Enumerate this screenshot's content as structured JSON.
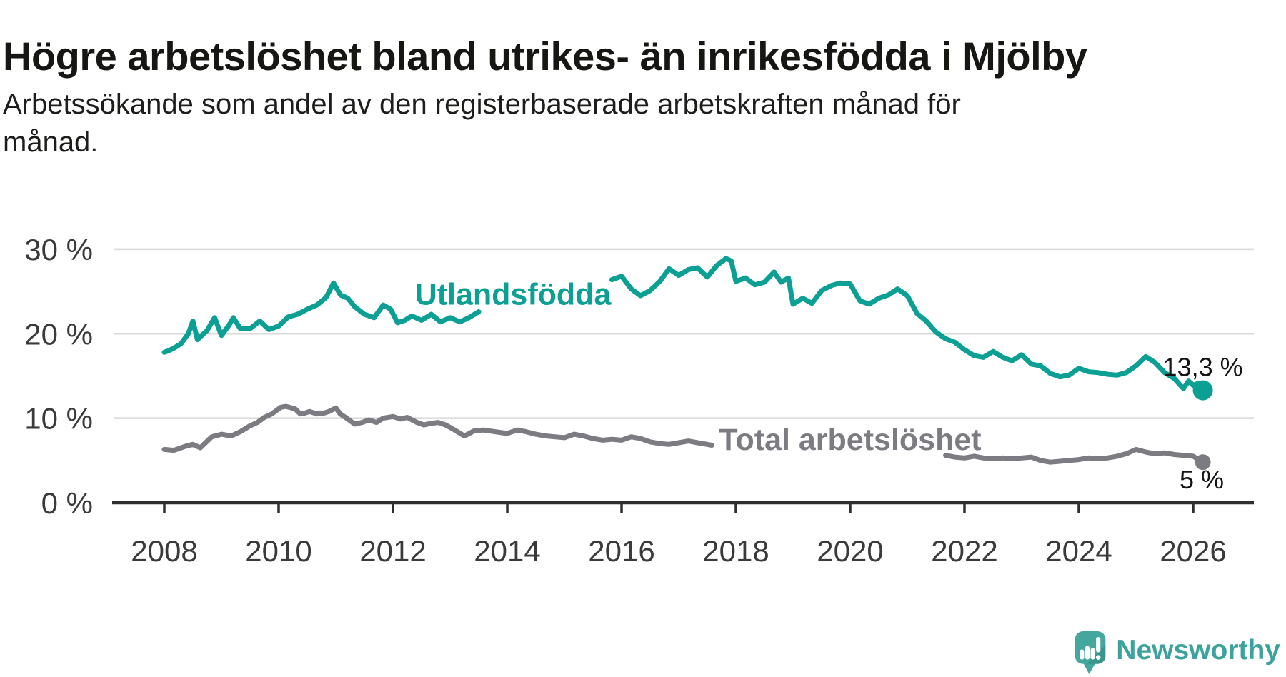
{
  "title": "Högre arbetslöshet bland utrikes- än inrikesfödda i Mjölby",
  "subtitle_lines": [
    "Arbetssökande som andel av den registerbaserade arbetskraften månad för",
    "månad."
  ],
  "colors": {
    "background": "#ffffff",
    "title": "#161613",
    "subtitle": "#1d1d1b",
    "teal": "#0ba093",
    "gray": "#7b7b81",
    "grid": "#d9d9d9",
    "axis": "#2e2e2e",
    "tick_text": "#3a3a3a",
    "annotation": "#141414",
    "logo_bubble": "#45a69e",
    "logo_bubble_shade": "#37908a",
    "logo_text": "#3ba39b"
  },
  "logo": {
    "text": "Newsworthy",
    "icon": "newsworthy-speech-bubble-chart-icon"
  },
  "chart_data": {
    "type": "line",
    "title": "Högre arbetslöshet bland utrikes- än inrikesfödda i Mjölby",
    "subtitle": "Arbetssökande som andel av den registerbaserade arbetskraften månad för månad.",
    "unit": "%",
    "grid": "horizontal",
    "legend_position": "inline-labels",
    "x_axis": {
      "range": [
        2007.1,
        2027.05
      ],
      "ticks": [
        2008,
        2010,
        2012,
        2014,
        2016,
        2018,
        2020,
        2022,
        2024,
        2026
      ]
    },
    "y_axis": {
      "range": [
        0,
        33.5
      ],
      "ticks": [
        {
          "value": 0,
          "label": "0 %"
        },
        {
          "value": 10,
          "label": "10 %"
        },
        {
          "value": 20,
          "label": "20 %"
        },
        {
          "value": 30,
          "label": "30 %"
        }
      ]
    },
    "series": [
      {
        "name": "Utlandsfödda",
        "color": "#0ba093",
        "label": {
          "text": "Utlandsfödda",
          "year": 2014.1,
          "value": 24.7
        },
        "end_dot": {
          "year": 2026.17,
          "value": 13.3,
          "radius": 14
        },
        "end_annotation": {
          "text": "13,3 %",
          "year": 2026.17,
          "value": 16.0
        },
        "segments": [
          [
            [
              2008.0,
              17.8
            ],
            [
              2008.08,
              18.0
            ],
            [
              2008.17,
              18.3
            ],
            [
              2008.29,
              18.8
            ],
            [
              2008.42,
              20.0
            ],
            [
              2008.5,
              21.5
            ],
            [
              2008.58,
              19.3
            ],
            [
              2008.75,
              20.4
            ],
            [
              2008.88,
              21.9
            ],
            [
              2009.0,
              19.8
            ],
            [
              2009.13,
              21.0
            ],
            [
              2009.21,
              21.9
            ],
            [
              2009.33,
              20.6
            ],
            [
              2009.5,
              20.6
            ],
            [
              2009.67,
              21.5
            ],
            [
              2009.83,
              20.5
            ],
            [
              2010.0,
              20.9
            ],
            [
              2010.17,
              22.0
            ],
            [
              2010.33,
              22.3
            ],
            [
              2010.5,
              22.9
            ],
            [
              2010.67,
              23.4
            ],
            [
              2010.83,
              24.3
            ],
            [
              2010.96,
              26.0
            ],
            [
              2011.08,
              24.6
            ],
            [
              2011.21,
              24.2
            ],
            [
              2011.33,
              23.2
            ],
            [
              2011.5,
              22.3
            ],
            [
              2011.67,
              21.9
            ],
            [
              2011.83,
              23.4
            ],
            [
              2011.96,
              22.9
            ],
            [
              2012.08,
              21.3
            ],
            [
              2012.21,
              21.6
            ],
            [
              2012.33,
              22.1
            ],
            [
              2012.5,
              21.6
            ],
            [
              2012.67,
              22.3
            ],
            [
              2012.83,
              21.4
            ],
            [
              2013.0,
              21.9
            ],
            [
              2013.17,
              21.4
            ],
            [
              2013.33,
              21.9
            ],
            [
              2013.5,
              22.6
            ]
          ],
          [
            [
              2015.83,
              26.4
            ],
            [
              2016.0,
              26.8
            ],
            [
              2016.17,
              25.3
            ],
            [
              2016.33,
              24.5
            ],
            [
              2016.5,
              25.1
            ],
            [
              2016.67,
              26.2
            ],
            [
              2016.83,
              27.7
            ],
            [
              2017.0,
              26.9
            ],
            [
              2017.17,
              27.6
            ],
            [
              2017.33,
              27.8
            ],
            [
              2017.5,
              26.7
            ],
            [
              2017.67,
              28.1
            ],
            [
              2017.83,
              28.9
            ],
            [
              2017.92,
              28.6
            ],
            [
              2018.0,
              26.2
            ],
            [
              2018.17,
              26.6
            ],
            [
              2018.33,
              25.8
            ],
            [
              2018.5,
              26.1
            ],
            [
              2018.67,
              27.3
            ],
            [
              2018.79,
              26.1
            ],
            [
              2018.92,
              26.6
            ],
            [
              2019.0,
              23.5
            ],
            [
              2019.17,
              24.2
            ],
            [
              2019.33,
              23.6
            ],
            [
              2019.5,
              25.1
            ],
            [
              2019.67,
              25.7
            ],
            [
              2019.83,
              26.0
            ],
            [
              2020.0,
              25.9
            ],
            [
              2020.17,
              23.9
            ],
            [
              2020.33,
              23.5
            ],
            [
              2020.5,
              24.2
            ],
            [
              2020.67,
              24.6
            ],
            [
              2020.83,
              25.3
            ],
            [
              2021.0,
              24.5
            ],
            [
              2021.17,
              22.4
            ],
            [
              2021.33,
              21.5
            ],
            [
              2021.5,
              20.2
            ],
            [
              2021.67,
              19.4
            ],
            [
              2021.83,
              19.0
            ],
            [
              2022.0,
              18.1
            ],
            [
              2022.17,
              17.4
            ],
            [
              2022.33,
              17.2
            ],
            [
              2022.5,
              17.9
            ],
            [
              2022.67,
              17.2
            ],
            [
              2022.83,
              16.8
            ],
            [
              2023.0,
              17.5
            ],
            [
              2023.17,
              16.4
            ],
            [
              2023.33,
              16.2
            ],
            [
              2023.5,
              15.3
            ],
            [
              2023.67,
              14.9
            ],
            [
              2023.83,
              15.1
            ],
            [
              2024.0,
              15.9
            ],
            [
              2024.17,
              15.5
            ],
            [
              2024.33,
              15.4
            ],
            [
              2024.5,
              15.2
            ],
            [
              2024.67,
              15.1
            ],
            [
              2024.83,
              15.4
            ],
            [
              2025.0,
              16.2
            ],
            [
              2025.17,
              17.3
            ],
            [
              2025.33,
              16.6
            ],
            [
              2025.5,
              15.4
            ],
            [
              2025.67,
              14.7
            ],
            [
              2025.83,
              13.5
            ],
            [
              2025.92,
              14.4
            ],
            [
              2026.0,
              13.9
            ],
            [
              2026.08,
              14.1
            ],
            [
              2026.17,
              13.3
            ]
          ]
        ]
      },
      {
        "name": "Total arbetslöshet",
        "color": "#7b7b81",
        "label": {
          "text": "Total arbetslöshet",
          "year": 2020.0,
          "value": 7.5
        },
        "end_dot": {
          "year": 2026.17,
          "value": 4.8,
          "radius": 11
        },
        "end_annotation": {
          "text": "5 %",
          "year": 2026.15,
          "value": 2.7
        },
        "segments": [
          [
            [
              2008.0,
              6.3
            ],
            [
              2008.17,
              6.2
            ],
            [
              2008.38,
              6.7
            ],
            [
              2008.5,
              6.9
            ],
            [
              2008.63,
              6.5
            ],
            [
              2008.83,
              7.8
            ],
            [
              2009.0,
              8.1
            ],
            [
              2009.17,
              7.9
            ],
            [
              2009.33,
              8.4
            ],
            [
              2009.5,
              9.1
            ],
            [
              2009.63,
              9.5
            ],
            [
              2009.75,
              10.1
            ],
            [
              2009.88,
              10.5
            ],
            [
              2010.04,
              11.3
            ],
            [
              2010.13,
              11.4
            ],
            [
              2010.29,
              11.1
            ],
            [
              2010.38,
              10.5
            ],
            [
              2010.46,
              10.6
            ],
            [
              2010.54,
              10.8
            ],
            [
              2010.67,
              10.5
            ],
            [
              2010.79,
              10.6
            ],
            [
              2010.88,
              10.8
            ],
            [
              2011.0,
              11.2
            ],
            [
              2011.08,
              10.5
            ],
            [
              2011.21,
              9.9
            ],
            [
              2011.33,
              9.3
            ],
            [
              2011.46,
              9.5
            ],
            [
              2011.58,
              9.8
            ],
            [
              2011.71,
              9.5
            ],
            [
              2011.83,
              10.0
            ],
            [
              2012.0,
              10.2
            ],
            [
              2012.13,
              9.9
            ],
            [
              2012.25,
              10.1
            ],
            [
              2012.42,
              9.5
            ],
            [
              2012.54,
              9.2
            ],
            [
              2012.67,
              9.4
            ],
            [
              2012.79,
              9.5
            ],
            [
              2012.92,
              9.2
            ],
            [
              2013.08,
              8.6
            ],
            [
              2013.25,
              7.9
            ],
            [
              2013.42,
              8.5
            ],
            [
              2013.58,
              8.6
            ],
            [
              2013.79,
              8.4
            ],
            [
              2014.0,
              8.2
            ],
            [
              2014.17,
              8.6
            ],
            [
              2014.33,
              8.4
            ],
            [
              2014.5,
              8.1
            ],
            [
              2014.67,
              7.9
            ],
            [
              2014.83,
              7.8
            ],
            [
              2015.0,
              7.7
            ],
            [
              2015.17,
              8.1
            ],
            [
              2015.33,
              7.9
            ],
            [
              2015.5,
              7.6
            ],
            [
              2015.67,
              7.4
            ],
            [
              2015.83,
              7.5
            ],
            [
              2016.0,
              7.4
            ],
            [
              2016.17,
              7.8
            ],
            [
              2016.33,
              7.6
            ],
            [
              2016.5,
              7.2
            ],
            [
              2016.67,
              7.0
            ],
            [
              2016.83,
              6.9
            ],
            [
              2017.0,
              7.1
            ],
            [
              2017.17,
              7.3
            ],
            [
              2017.33,
              7.1
            ],
            [
              2017.5,
              6.9
            ],
            [
              2017.58,
              6.8
            ]
          ],
          [
            [
              2021.67,
              5.6
            ],
            [
              2021.83,
              5.4
            ],
            [
              2022.0,
              5.3
            ],
            [
              2022.17,
              5.5
            ],
            [
              2022.33,
              5.3
            ],
            [
              2022.5,
              5.2
            ],
            [
              2022.67,
              5.3
            ],
            [
              2022.83,
              5.2
            ],
            [
              2023.0,
              5.3
            ],
            [
              2023.17,
              5.4
            ],
            [
              2023.33,
              5.0
            ],
            [
              2023.5,
              4.8
            ],
            [
              2023.67,
              4.9
            ],
            [
              2023.83,
              5.0
            ],
            [
              2024.0,
              5.1
            ],
            [
              2024.17,
              5.3
            ],
            [
              2024.33,
              5.2
            ],
            [
              2024.5,
              5.3
            ],
            [
              2024.67,
              5.5
            ],
            [
              2024.83,
              5.8
            ],
            [
              2025.0,
              6.3
            ],
            [
              2025.17,
              6.0
            ],
            [
              2025.33,
              5.8
            ],
            [
              2025.5,
              5.9
            ],
            [
              2025.67,
              5.7
            ],
            [
              2025.83,
              5.6
            ],
            [
              2026.0,
              5.5
            ],
            [
              2026.17,
              4.8
            ]
          ]
        ]
      }
    ]
  }
}
